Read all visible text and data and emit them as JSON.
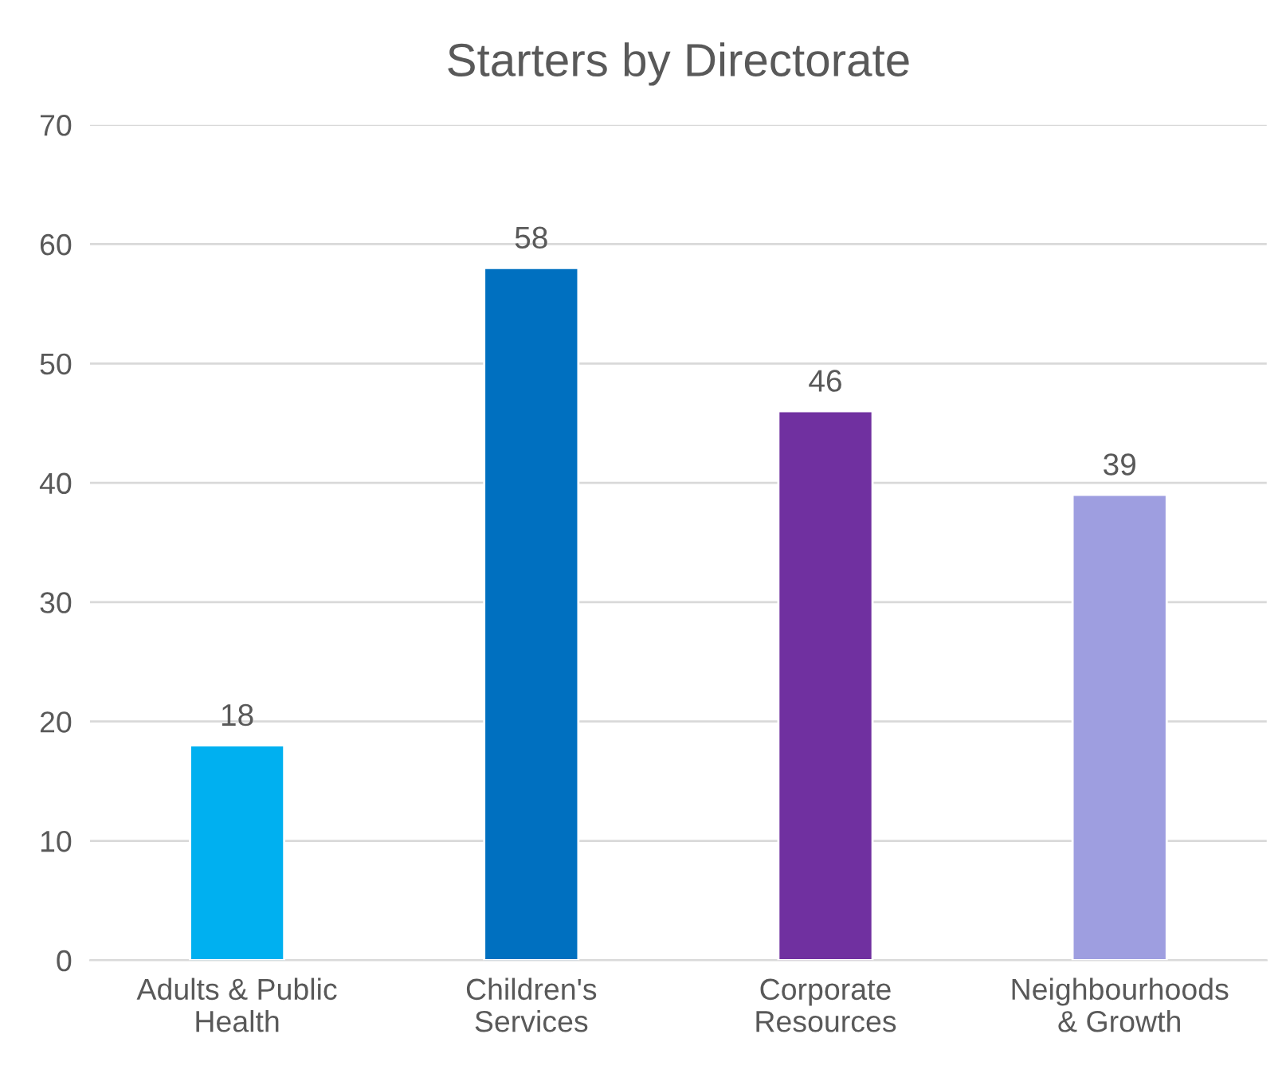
{
  "chart_data": {
    "type": "bar",
    "title": "Starters by Directorate",
    "categories": [
      "Adults & Public Health",
      "Children's Services",
      "Corporate Resources",
      "Neighbourhoods & Growth"
    ],
    "values": [
      18,
      58,
      46,
      39
    ],
    "colors": [
      "#00b0f0",
      "#0070c0",
      "#7030a0",
      "#9e9ee0"
    ],
    "ylim": [
      0,
      70
    ],
    "yticks": [
      0,
      10,
      20,
      30,
      40,
      50,
      60,
      70
    ],
    "grid": "y",
    "data_labels": true
  }
}
